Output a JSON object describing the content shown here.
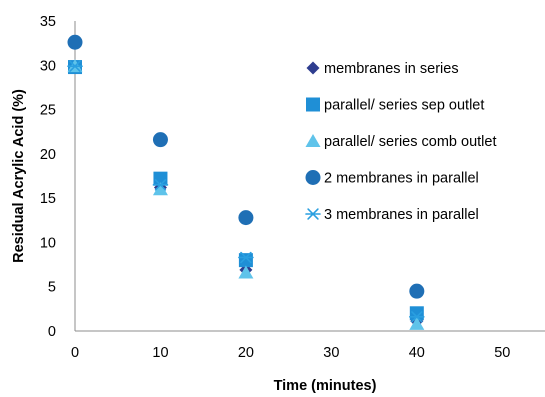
{
  "chart_data": {
    "type": "scatter",
    "title": "",
    "xlabel": "Time (minutes)",
    "ylabel": "Residual Acrylic Acid (%)",
    "xlim": [
      0,
      55
    ],
    "ylim": [
      0,
      35
    ],
    "xticks": [
      0,
      10,
      20,
      30,
      40,
      50
    ],
    "yticks": [
      0,
      5,
      10,
      15,
      20,
      25,
      30,
      35
    ],
    "grid": false,
    "legend_position": "right",
    "series": [
      {
        "name": "membranes in series",
        "marker": "diamond",
        "color": "#2e3d8f",
        "x": [
          0,
          10,
          20,
          40
        ],
        "y": [
          29.8,
          16.2,
          6.9,
          1.1
        ]
      },
      {
        "name": "parallel/ series sep outlet",
        "marker": "square",
        "color": "#1f8fd6",
        "x": [
          0,
          10,
          20,
          40
        ],
        "y": [
          29.8,
          17.2,
          8.0,
          2.0
        ]
      },
      {
        "name": "parallel/ series comb outlet",
        "marker": "triangle",
        "color": "#5fc3ea",
        "x": [
          0,
          10,
          20,
          40
        ],
        "y": [
          29.9,
          16.0,
          6.6,
          0.8
        ]
      },
      {
        "name": "2 membranes in parallel",
        "marker": "circle",
        "color": "#1f6fb5",
        "x": [
          0,
          10,
          20,
          40
        ],
        "y": [
          32.6,
          21.6,
          12.8,
          4.5
        ]
      },
      {
        "name": "3 membranes in parallel",
        "marker": "asterisk",
        "color": "#2a9fe0",
        "x": [
          0,
          10,
          20,
          40
        ],
        "y": [
          29.9,
          16.5,
          8.3,
          1.6
        ]
      }
    ]
  }
}
